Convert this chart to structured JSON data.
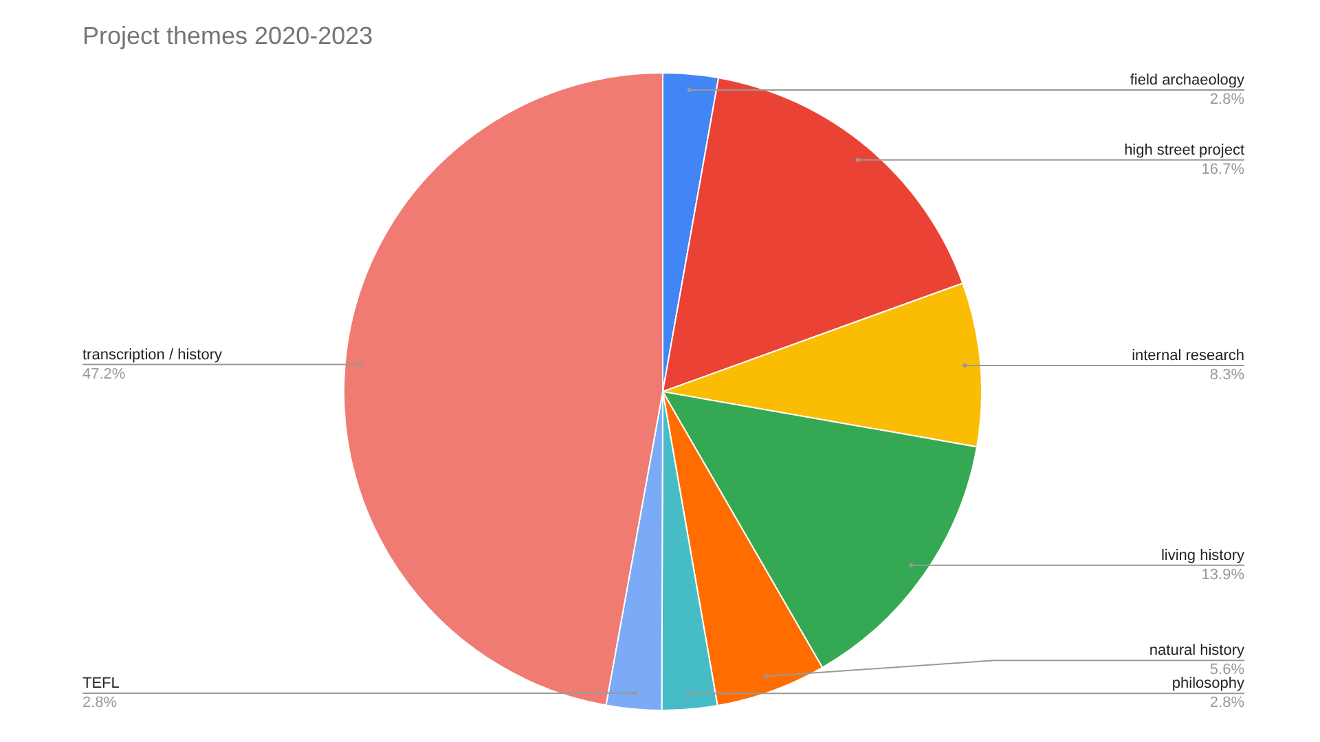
{
  "chart_data": {
    "type": "pie",
    "title": "Project themes 2020-2023",
    "categories": [
      "field archaeology",
      "high street project",
      "internal research",
      "living history",
      "natural history",
      "philosophy",
      "TEFL",
      "transcription / history"
    ],
    "values": [
      2.8,
      16.7,
      8.3,
      13.9,
      5.6,
      2.8,
      2.8,
      47.2
    ],
    "value_labels": [
      "2.8%",
      "16.7%",
      "8.3%",
      "13.9%",
      "5.6%",
      "2.8%",
      "2.8%",
      "47.2%"
    ],
    "colors": [
      "#4285f4",
      "#ea4335",
      "#fbbc04",
      "#34a853",
      "#ff6d01",
      "#46bdc6",
      "#7baaf7",
      "#f07b72"
    ]
  }
}
